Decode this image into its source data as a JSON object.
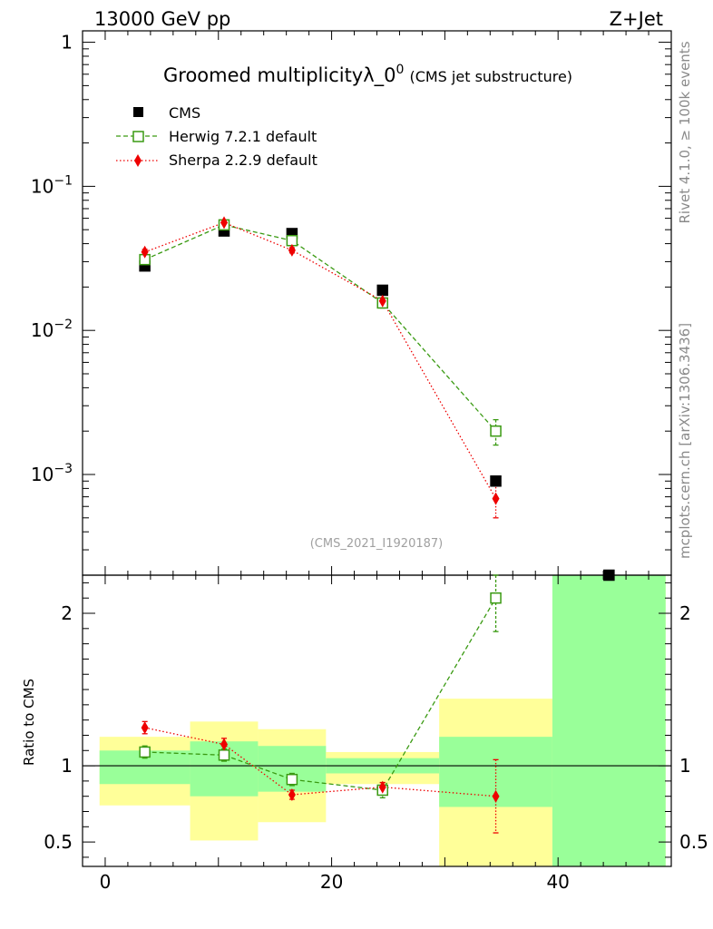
{
  "header": {
    "energy_label": "13000 GeV pp",
    "process_label": "Z+Jet"
  },
  "side_labels": {
    "rivet": "Rivet 4.1.0, ≥ 100k events",
    "mcplots": "mcplots.cern.ch [arXiv:1306.3436]"
  },
  "chart_data": [
    {
      "type": "scatter",
      "panel": "main",
      "title_main": "Groomed multiplicityλ_0",
      "title_sup": "0",
      "title_sub": "(CMS jet substructure)",
      "watermark": "(CMS_2021_I1920187)",
      "yscale": "log",
      "ylim": [
        0.0002,
        1.2
      ],
      "xlim": [
        -2,
        50
      ],
      "y_ticks": [
        {
          "value": 1,
          "base": "1",
          "exp": ""
        },
        {
          "value": 0.1,
          "base": "10",
          "exp": "−1"
        },
        {
          "value": 0.01,
          "base": "10",
          "exp": "−2"
        },
        {
          "value": 0.001,
          "base": "10",
          "exp": "−3"
        }
      ],
      "legend_position": "top-left",
      "series": [
        {
          "name": "CMS",
          "style": "data",
          "color": "#000000",
          "x": [
            3.5,
            10.5,
            16.5,
            24.5,
            34.5,
            44.5
          ],
          "y": [
            0.028,
            0.049,
            0.047,
            0.019,
            0.0009,
            0.00018
          ]
        },
        {
          "name": "Herwig 7.2.1 default",
          "style": "dashed-open-square",
          "color": "#3a9a12",
          "x": [
            3.5,
            10.5,
            16.5,
            24.5,
            34.5
          ],
          "y": [
            0.031,
            0.054,
            0.042,
            0.0155,
            0.002
          ],
          "err": [
            0.002,
            0.003,
            0.003,
            0.0012,
            0.0004
          ]
        },
        {
          "name": "Sherpa 2.2.9 default",
          "style": "dotted-diamond",
          "color": "#ee0000",
          "x": [
            3.5,
            10.5,
            16.5,
            24.5,
            34.5
          ],
          "y": [
            0.035,
            0.056,
            0.036,
            0.016,
            0.00068
          ],
          "err": [
            0.0015,
            0.002,
            0.0015,
            0.0008,
            0.00018
          ]
        }
      ]
    },
    {
      "type": "scatter",
      "panel": "ratio",
      "ylabel": "Ratio to CMS",
      "xlim": [
        -2,
        50
      ],
      "ylim": [
        0.34,
        2.25
      ],
      "x_ticks": [
        0,
        20,
        40
      ],
      "y_ticks": [
        0.5,
        1,
        2
      ],
      "reference_line": 1,
      "bands": [
        {
          "x0": -0.5,
          "x1": 7.5,
          "y_inner": [
            0.88,
            1.1
          ],
          "y_outer": [
            0.74,
            1.19
          ]
        },
        {
          "x0": 7.5,
          "x1": 13.5,
          "y_inner": [
            0.8,
            1.16
          ],
          "y_outer": [
            0.51,
            1.29
          ]
        },
        {
          "x0": 13.5,
          "x1": 19.5,
          "y_inner": [
            0.83,
            1.13
          ],
          "y_outer": [
            0.63,
            1.24
          ]
        },
        {
          "x0": 19.5,
          "x1": 29.5,
          "y_inner": [
            0.95,
            1.05
          ],
          "y_outer": [
            0.88,
            1.09
          ]
        },
        {
          "x0": 29.5,
          "x1": 39.5,
          "y_inner": [
            0.73,
            1.19
          ],
          "y_outer": [
            0.34,
            1.44
          ]
        },
        {
          "x0": 39.5,
          "x1": 49.5,
          "y_inner": [
            0.34,
            2.25
          ],
          "y_outer": [
            0.34,
            2.25
          ]
        }
      ],
      "series": [
        {
          "name": "Herwig 7.2.1 default",
          "color": "#3a9a12",
          "x": [
            3.5,
            10.5,
            16.5,
            24.5,
            34.5
          ],
          "y": [
            1.09,
            1.07,
            0.91,
            0.84,
            2.1
          ],
          "err": [
            0.04,
            0.04,
            0.04,
            0.05,
            0.22
          ]
        },
        {
          "name": "Sherpa 2.2.9 default",
          "color": "#ee0000",
          "x": [
            3.5,
            10.5,
            16.5,
            24.5,
            34.5
          ],
          "y": [
            1.25,
            1.14,
            0.81,
            0.86,
            0.8
          ],
          "err": [
            0.04,
            0.04,
            0.03,
            0.03,
            0.24
          ]
        }
      ]
    }
  ]
}
